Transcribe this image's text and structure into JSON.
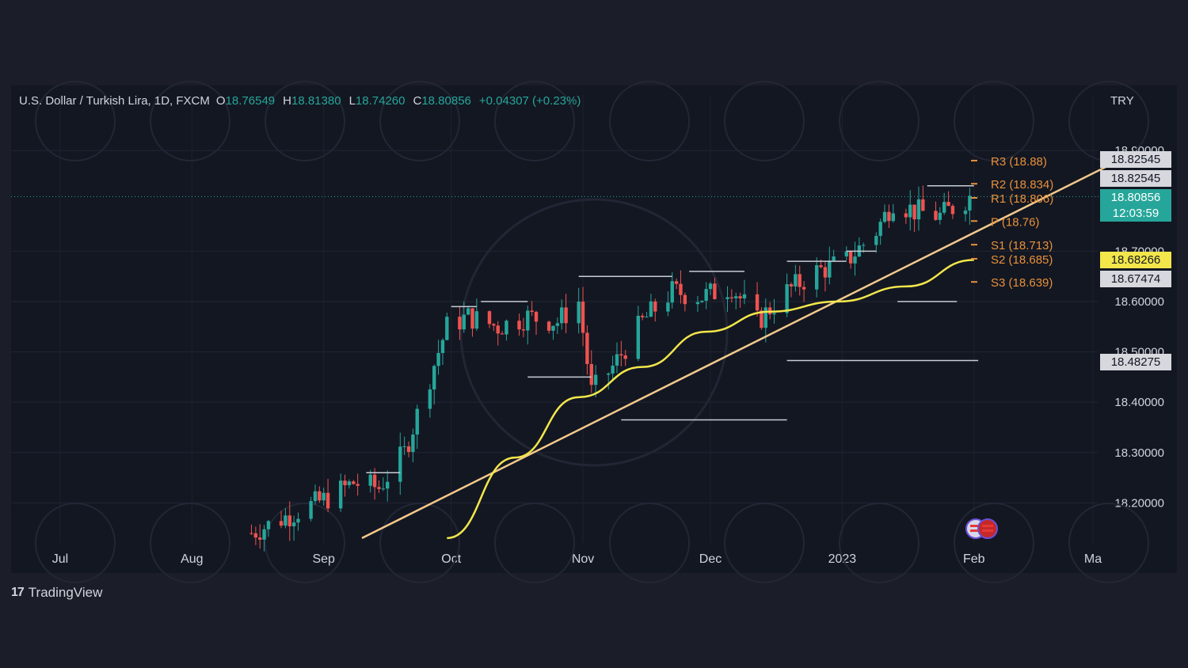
{
  "header": {
    "symbol": "U.S. Dollar / Turkish Lira, 1D, FXCM",
    "open_label": "O",
    "open": "18.76549",
    "high_label": "H",
    "high": "18.81380",
    "low_label": "L",
    "low": "18.74260",
    "close_label": "C",
    "close": "18.80856",
    "change": "+0.04307 (+0.23%)"
  },
  "currency": "TRY",
  "brand": {
    "logo_glyph": "17",
    "name": "TradingView"
  },
  "colors": {
    "bull": "#26a69a",
    "bear": "#ef5350",
    "trendline": "#f3c98b",
    "moving_average": "#f2e64b",
    "pivot_labels": "#e8903a"
  },
  "price_badges": {
    "upper_1": "18.82545",
    "upper_2": "18.82545",
    "last_price": "18.80856",
    "countdown": "12:03:59",
    "moving_average": "18.68266",
    "lower_1": "18.67474",
    "lower_2": "18.48275"
  },
  "chart_data": {
    "type": "candlestick",
    "x_labels": [
      "Jul",
      "Aug",
      "Sep",
      "Oct",
      "Nov",
      "Dec",
      "2023",
      "Feb",
      "Ma"
    ],
    "y_ticks": [
      "18.90000",
      "18.70000",
      "18.60000",
      "18.50000",
      "18.40000",
      "18.30000",
      "18.20000"
    ],
    "ylim": [
      18.13,
      18.92
    ],
    "grid": true,
    "pivot_levels": [
      {
        "label": "R3 (18.88)",
        "value": 18.88
      },
      {
        "label": "R2 (18.834)",
        "value": 18.834
      },
      {
        "label": "R1 (18.806)",
        "value": 18.806
      },
      {
        "label": "P (18.76)",
        "value": 18.76
      },
      {
        "label": "S1 (18.713)",
        "value": 18.713
      },
      {
        "label": "S2 (18.685)",
        "value": 18.685
      },
      {
        "label": "S3 (18.639)",
        "value": 18.639
      }
    ],
    "anchors": [
      {
        "date": "2022-08-15",
        "value": 18.14
      },
      {
        "date": "2022-08-25",
        "value": 18.18
      },
      {
        "date": "2022-09-02",
        "value": 18.21
      },
      {
        "date": "2022-09-08",
        "value": 18.24
      },
      {
        "date": "2022-09-14",
        "value": 18.23
      },
      {
        "date": "2022-09-20",
        "value": 18.3
      },
      {
        "date": "2022-09-26",
        "value": 18.45
      },
      {
        "date": "2022-09-30",
        "value": 18.55
      },
      {
        "date": "2022-10-05",
        "value": 18.57
      },
      {
        "date": "2022-10-12",
        "value": 18.55
      },
      {
        "date": "2022-10-19",
        "value": 18.57
      },
      {
        "date": "2022-10-26",
        "value": 18.56
      },
      {
        "date": "2022-10-31",
        "value": 18.6
      },
      {
        "date": "2022-11-03",
        "value": 18.42
      },
      {
        "date": "2022-11-08",
        "value": 18.47
      },
      {
        "date": "2022-11-15",
        "value": 18.56
      },
      {
        "date": "2022-11-22",
        "value": 18.62
      },
      {
        "date": "2022-11-29",
        "value": 18.61
      },
      {
        "date": "2022-12-06",
        "value": 18.63
      },
      {
        "date": "2022-12-12",
        "value": 18.56
      },
      {
        "date": "2022-12-19",
        "value": 18.62
      },
      {
        "date": "2022-12-26",
        "value": 18.66
      },
      {
        "date": "2023-01-02",
        "value": 18.68
      },
      {
        "date": "2023-01-09",
        "value": 18.74
      },
      {
        "date": "2023-01-13",
        "value": 18.8
      },
      {
        "date": "2023-01-18",
        "value": 18.78
      },
      {
        "date": "2023-01-24",
        "value": 18.77
      },
      {
        "date": "2023-01-31",
        "value": 18.80856
      }
    ],
    "trendline": [
      {
        "date": "2022-09-10",
        "value": 18.13
      },
      {
        "date": "2023-03-07",
        "value": 18.88
      }
    ],
    "moving_average": [
      {
        "date": "2022-09-30",
        "value": 18.13
      },
      {
        "date": "2022-10-16",
        "value": 18.29
      },
      {
        "date": "2022-10-31",
        "value": 18.41
      },
      {
        "date": "2022-11-15",
        "value": 18.47
      },
      {
        "date": "2022-11-30",
        "value": 18.54
      },
      {
        "date": "2022-12-15",
        "value": 18.58
      },
      {
        "date": "2022-12-31",
        "value": 18.6
      },
      {
        "date": "2023-01-16",
        "value": 18.63
      },
      {
        "date": "2023-02-01",
        "value": 18.68266
      }
    ]
  }
}
